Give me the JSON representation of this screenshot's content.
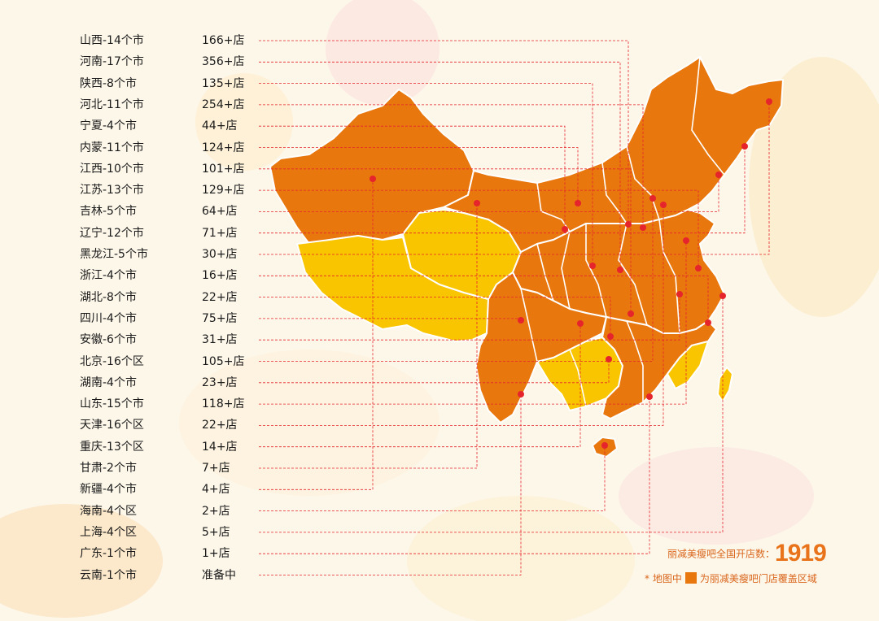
{
  "colors": {
    "covered": "#e8770e",
    "uncovered": "#f9c400",
    "border": "#ffffff",
    "marker": "#e5242b",
    "leader": "#e5242b",
    "text_accent": "#e8731a"
  },
  "rows": [
    {
      "name": "山西-14个市",
      "count": "166+店"
    },
    {
      "name": "河南-17个市",
      "count": "356+店"
    },
    {
      "name": "陕西-8个市",
      "count": "135+店"
    },
    {
      "name": "河北-11个市",
      "count": "254+店"
    },
    {
      "name": "宁夏-4个市",
      "count": "44+店"
    },
    {
      "name": "内蒙-11个市",
      "count": "124+店"
    },
    {
      "name": "江西-10个市",
      "count": "101+店"
    },
    {
      "name": "江苏-13个市",
      "count": "129+店"
    },
    {
      "name": "吉林-5个市",
      "count": "64+店"
    },
    {
      "name": "辽宁-12个市",
      "count": "71+店"
    },
    {
      "name": "黑龙江-5个市",
      "count": "30+店"
    },
    {
      "name": "浙江-4个市",
      "count": "16+店"
    },
    {
      "name": "湖北-8个市",
      "count": "22+店"
    },
    {
      "name": "四川-4个市",
      "count": "75+店"
    },
    {
      "name": "安徽-6个市",
      "count": "31+店"
    },
    {
      "name": "北京-16个区",
      "count": "105+店"
    },
    {
      "name": "湖南-4个市",
      "count": "23+店"
    },
    {
      "name": "山东-15个市",
      "count": "118+店"
    },
    {
      "name": "天津-16个区",
      "count": "22+店"
    },
    {
      "name": "重庆-13个区",
      "count": "14+店"
    },
    {
      "name": "甘肃-2个市",
      "count": "7+店"
    },
    {
      "name": "新疆-4个市",
      "count": "4+店"
    },
    {
      "name": "海南-4个区",
      "count": "2+店"
    },
    {
      "name": "上海-4个区",
      "count": "5+店"
    },
    {
      "name": "广东-1个市",
      "count": "1+店"
    },
    {
      "name": "云南-1个市",
      "count": "准备中"
    }
  ],
  "summary": {
    "label": "丽减美瘦吧全国开店数：",
    "total": "1919"
  },
  "legend": {
    "prefix": "* 地图中",
    "suffix": "为丽减美瘦吧门店覆盖区域"
  }
}
